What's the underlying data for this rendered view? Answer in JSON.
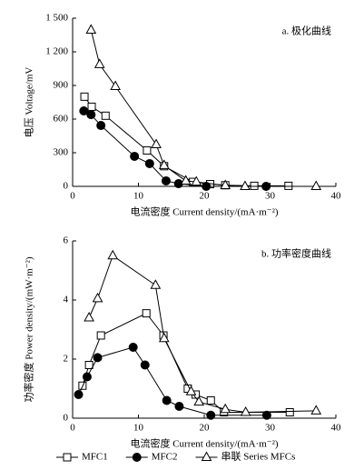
{
  "chart_data": [
    {
      "type": "line",
      "annotation": "a. 极化曲线",
      "xlabel": "电流密度 Current density/(mA·m⁻²)",
      "ylabel": "电压 Voltage/mV",
      "xlim": [
        0,
        40
      ],
      "xticks": [
        0,
        10,
        20,
        30,
        40
      ],
      "ylim": [
        0,
        1500
      ],
      "yticks": [
        0,
        300,
        600,
        900,
        {
          "value": 1200,
          "label": "1 200"
        },
        {
          "value": 1500,
          "label": "1 500"
        }
      ],
      "series": [
        {
          "name": "MFC1",
          "color": "#000000",
          "marker": "square",
          "x": [
            1.8,
            2.9,
            5.0,
            11.3,
            13.9,
            18.3,
            20.9,
            23.2,
            27.6,
            32.8
          ],
          "values": [
            800,
            710,
            630,
            320,
            180,
            40,
            20,
            10,
            5,
            5
          ]
        },
        {
          "name": "MFC2",
          "color": "#000000",
          "marker": "circle",
          "x": [
            1.7,
            2.8,
            4.3,
            9.4,
            11.7,
            14.2,
            16.1,
            20.3,
            29.4
          ],
          "values": [
            673,
            640,
            543,
            268,
            203,
            49,
            24,
            0,
            0
          ]
        },
        {
          "name": "串联 Series MFCs",
          "color": "#000000",
          "marker": "triangle",
          "x": [
            2.8,
            4.1,
            6.5,
            12.7,
            13.9,
            17.2,
            18.8,
            23.2,
            26.2,
            37.0
          ],
          "values": [
            1395,
            1087,
            892,
            373,
            187,
            49,
            40,
            8,
            0,
            0
          ]
        }
      ]
    },
    {
      "type": "line",
      "annotation": "b. 功率密度曲线",
      "xlabel": "电流密度 Current density/(mA·m⁻²)",
      "ylabel": "功率密度 Power density/(mW·m⁻²)",
      "xlim": [
        0,
        40
      ],
      "xticks": [
        0,
        10,
        20,
        30,
        40
      ],
      "ylim": [
        0,
        6
      ],
      "yticks": [
        0,
        2,
        4,
        6
      ],
      "series": [
        {
          "name": "MFC1",
          "color": "#000000",
          "marker": "square",
          "x": [
            1.5,
            2.5,
            4.3,
            11.2,
            13.8,
            17.5,
            18.7,
            21.0,
            23.0,
            33.0
          ],
          "values": [
            1.1,
            1.8,
            2.8,
            3.55,
            2.8,
            1.0,
            0.8,
            0.6,
            0.2,
            0.2
          ]
        },
        {
          "name": "MFC2",
          "color": "#000000",
          "marker": "circle",
          "x": [
            0.9,
            2.2,
            3.8,
            9.2,
            11.0,
            14.3,
            16.2,
            21.0,
            29.5
          ],
          "values": [
            0.8,
            1.4,
            2.05,
            2.4,
            1.8,
            0.6,
            0.4,
            0.1,
            0.1
          ]
        },
        {
          "name": "串联 Series MFCs",
          "color": "#000000",
          "marker": "triangle",
          "x": [
            2.5,
            3.8,
            6.1,
            12.6,
            13.9,
            18.0,
            19.2,
            23.2,
            26.3,
            37.0
          ],
          "values": [
            3.4,
            4.05,
            5.5,
            4.5,
            2.7,
            0.9,
            0.55,
            0.3,
            0.2,
            0.25
          ]
        }
      ]
    }
  ]
}
